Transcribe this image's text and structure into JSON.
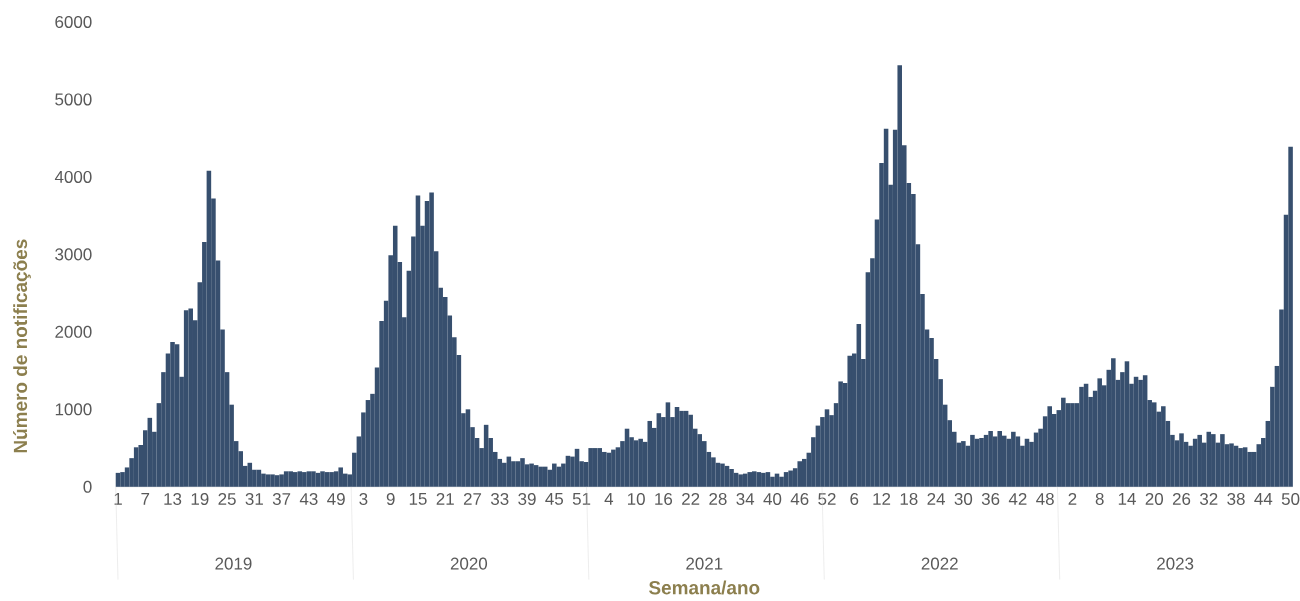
{
  "chart_data": {
    "type": "bar",
    "xlabel": "Semana/ano",
    "ylabel": "Número de notificações",
    "color": "#374f6e",
    "ylim": [
      0,
      6000
    ],
    "yticks": [
      0,
      1000,
      2000,
      3000,
      4000,
      5000,
      6000
    ],
    "annotations": [
      "2019",
      "2020",
      "2021",
      "2022",
      "2023"
    ],
    "categories": [
      "1",
      null,
      null,
      null,
      null,
      null,
      "7",
      null,
      null,
      null,
      null,
      null,
      "13",
      null,
      null,
      null,
      null,
      null,
      "19",
      null,
      null,
      null,
      null,
      null,
      "25",
      null,
      null,
      null,
      null,
      null,
      "31",
      null,
      null,
      null,
      null,
      null,
      "37",
      null,
      null,
      null,
      null,
      null,
      "43",
      null,
      null,
      null,
      null,
      null,
      "49",
      null,
      null,
      null,
      null,
      null,
      "3",
      null,
      null,
      null,
      null,
      null,
      "9",
      null,
      null,
      null,
      null,
      null,
      "15",
      null,
      null,
      null,
      null,
      null,
      "21",
      null,
      null,
      null,
      null,
      null,
      "27",
      null,
      null,
      null,
      null,
      null,
      "33",
      null,
      null,
      null,
      null,
      null,
      "39",
      null,
      null,
      null,
      null,
      null,
      "45",
      null,
      null,
      null,
      null,
      null,
      "51",
      null,
      null,
      null,
      null,
      null,
      "4",
      null,
      null,
      null,
      null,
      null,
      "10",
      null,
      null,
      null,
      null,
      null,
      "16",
      null,
      null,
      null,
      null,
      null,
      "22",
      null,
      null,
      null,
      null,
      null,
      "28",
      null,
      null,
      null,
      null,
      null,
      "34",
      null,
      null,
      null,
      null,
      null,
      "40",
      null,
      null,
      null,
      null,
      null,
      "46",
      null,
      null,
      null,
      null,
      null,
      "52",
      null,
      null,
      null,
      null,
      null,
      "6",
      null,
      null,
      null,
      null,
      null,
      "12",
      null,
      null,
      null,
      null,
      null,
      "18",
      null,
      null,
      null,
      null,
      null,
      "24",
      null,
      null,
      null,
      null,
      null,
      "30",
      null,
      null,
      null,
      null,
      null,
      "36",
      null,
      null,
      null,
      null,
      null,
      "42",
      null,
      null,
      null,
      null,
      null,
      "48",
      null,
      null,
      null,
      null,
      null,
      "2",
      null,
      null,
      null,
      null,
      null,
      "8",
      null,
      null,
      null,
      null,
      null,
      "14",
      null,
      null,
      null,
      null,
      null,
      "20",
      null,
      null,
      null,
      null,
      null,
      "26",
      null,
      null,
      null,
      null,
      null,
      "32",
      null,
      null,
      null,
      null,
      null,
      "38",
      null,
      null,
      null,
      null,
      null,
      "44",
      null,
      null,
      null,
      null,
      null,
      "50"
    ],
    "values": [
      180,
      190,
      250,
      370,
      510,
      540,
      730,
      890,
      710,
      1080,
      1480,
      1720,
      1870,
      1840,
      1420,
      2280,
      2300,
      2150,
      2640,
      3160,
      4080,
      3720,
      2920,
      2030,
      1480,
      1060,
      590,
      460,
      270,
      310,
      220,
      220,
      170,
      160,
      160,
      150,
      160,
      200,
      200,
      190,
      200,
      190,
      200,
      200,
      180,
      200,
      190,
      190,
      200,
      250,
      170,
      160,
      440,
      650,
      960,
      1120,
      1200,
      1540,
      2140,
      2400,
      2990,
      3370,
      2900,
      2190,
      2790,
      3230,
      3760,
      3370,
      3690,
      3800,
      3040,
      2570,
      2450,
      2210,
      1930,
      1700,
      950,
      1000,
      770,
      630,
      500,
      800,
      630,
      450,
      360,
      310,
      390,
      330,
      330,
      370,
      290,
      300,
      280,
      260,
      260,
      220,
      300,
      260,
      300,
      400,
      390,
      490,
      330,
      320,
      500,
      500,
      500,
      450,
      440,
      480,
      510,
      590,
      750,
      640,
      600,
      620,
      580,
      850,
      760,
      950,
      900,
      1090,
      900,
      1030,
      980,
      980,
      930,
      750,
      680,
      590,
      450,
      380,
      310,
      300,
      270,
      230,
      180,
      160,
      170,
      190,
      200,
      190,
      180,
      190,
      130,
      170,
      130,
      190,
      210,
      240,
      330,
      360,
      440,
      640,
      790,
      900,
      1000,
      925,
      1080,
      1360,
      1340,
      1690,
      1720,
      2100,
      1650,
      2770,
      2950,
      3450,
      4180,
      4620,
      3900,
      4610,
      5440,
      4410,
      3920,
      3780,
      3130,
      2490,
      2030,
      1920,
      1650,
      1390,
      1060,
      860,
      710,
      570,
      590,
      530,
      670,
      620,
      630,
      670,
      720,
      650,
      720,
      660,
      620,
      710,
      650,
      530,
      620,
      580,
      700,
      750,
      910,
      1040,
      940,
      990,
      1150,
      1080,
      1080,
      1080,
      1290,
      1330,
      1160,
      1240,
      1400,
      1310,
      1510,
      1660,
      1380,
      1480,
      1620,
      1330,
      1420,
      1380,
      1440,
      1120,
      1090,
      970,
      1040,
      850,
      670,
      600,
      690,
      580,
      530,
      620,
      670,
      570,
      710,
      680,
      570,
      680,
      550,
      560,
      530,
      500,
      510,
      450,
      450,
      550,
      630,
      850,
      1290,
      1560,
      2290,
      3510,
      4390
    ]
  }
}
